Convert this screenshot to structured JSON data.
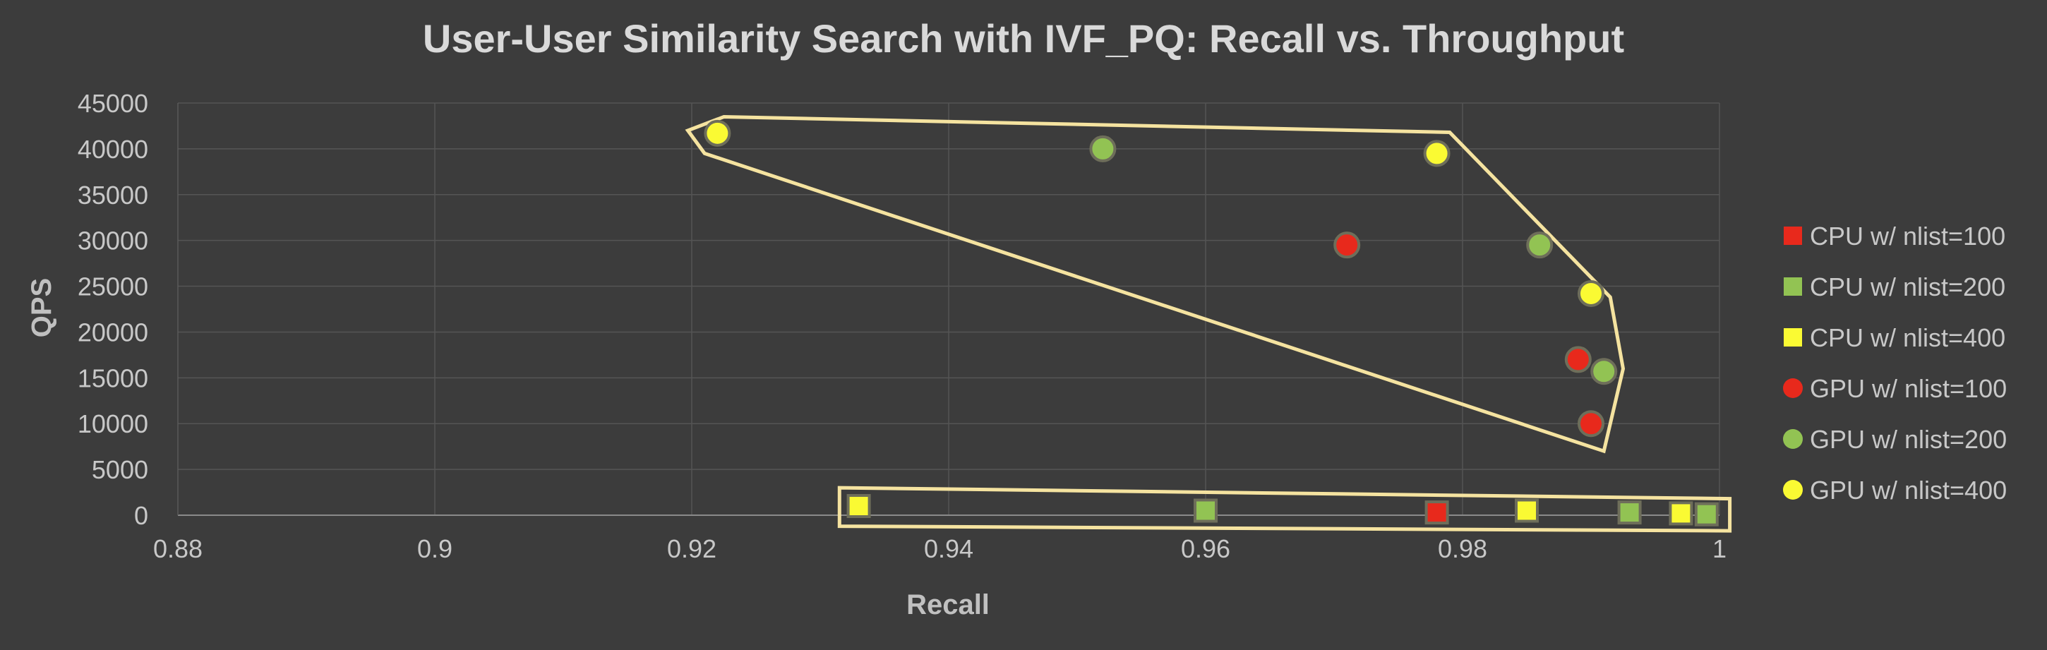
{
  "chart_data": {
    "type": "scatter",
    "title": "User-User Similarity Search with IVF_PQ: Recall vs. Throughput",
    "xlabel": "Recall",
    "ylabel": "QPS",
    "xlim": [
      0.88,
      1.0
    ],
    "ylim": [
      0,
      45000
    ],
    "x_ticks": [
      "0.88",
      "0.9",
      "0.92",
      "0.94",
      "0.96",
      "0.98",
      "1"
    ],
    "y_ticks": [
      "0",
      "5000",
      "10000",
      "15000",
      "20000",
      "25000",
      "30000",
      "35000",
      "40000",
      "45000"
    ],
    "grid": true,
    "legend_position": "right",
    "series": [
      {
        "name": "CPU w/ nlist=100",
        "marker": "square",
        "color": "#e8291c",
        "points": [
          {
            "x": 0.978,
            "y": 300
          }
        ]
      },
      {
        "name": "CPU w/ nlist=200",
        "marker": "square",
        "color": "#92c353",
        "points": [
          {
            "x": 0.96,
            "y": 500
          },
          {
            "x": 0.993,
            "y": 300
          },
          {
            "x": 0.999,
            "y": 100
          }
        ]
      },
      {
        "name": "CPU w/ nlist=400",
        "marker": "square",
        "color": "#fafa33",
        "points": [
          {
            "x": 0.933,
            "y": 1000
          },
          {
            "x": 0.985,
            "y": 500
          },
          {
            "x": 0.997,
            "y": 200
          }
        ]
      },
      {
        "name": "GPU w/ nlist=100",
        "marker": "circle",
        "color": "#e8291c",
        "points": [
          {
            "x": 0.971,
            "y": 29500
          },
          {
            "x": 0.989,
            "y": 17000
          },
          {
            "x": 0.99,
            "y": 10000
          }
        ]
      },
      {
        "name": "GPU w/ nlist=200",
        "marker": "circle",
        "color": "#92c353",
        "points": [
          {
            "x": 0.952,
            "y": 40000
          },
          {
            "x": 0.986,
            "y": 29500
          },
          {
            "x": 0.991,
            "y": 15700
          }
        ]
      },
      {
        "name": "GPU w/ nlist=400",
        "marker": "circle",
        "color": "#fafa33",
        "points": [
          {
            "x": 0.922,
            "y": 41700
          },
          {
            "x": 0.978,
            "y": 39500
          },
          {
            "x": 0.99,
            "y": 24200
          }
        ]
      }
    ],
    "annotations": [
      {
        "kind": "outline",
        "color": "#f5e3a0",
        "vertices": [
          [
            0.9225,
            43500
          ],
          [
            0.979,
            41800
          ],
          [
            0.9915,
            23800
          ],
          [
            0.9925,
            16000
          ],
          [
            0.991,
            7000
          ],
          [
            0.921,
            39500
          ],
          [
            0.9197,
            42000
          ]
        ]
      },
      {
        "kind": "outline",
        "color": "#f5e3a0",
        "vertices": [
          [
            0.9315,
            3000
          ],
          [
            1.0008,
            1800
          ],
          [
            1.0008,
            -1700
          ],
          [
            0.9315,
            -1200
          ]
        ]
      }
    ]
  }
}
